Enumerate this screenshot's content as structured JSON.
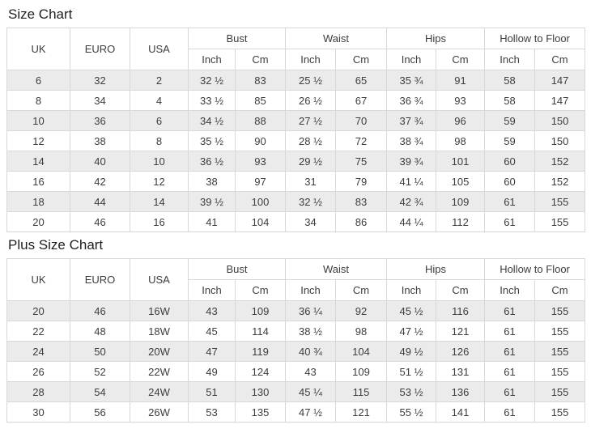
{
  "page": {
    "background": "#ffffff"
  },
  "colors": {
    "stripe_row_bg": "#ebebeb",
    "table_border": "#d8d8d8",
    "body_text": "#3d3d3d",
    "title_text": "#1f1f1f"
  },
  "tables": [
    {
      "title": "Size Chart",
      "fixed_columns": [
        "UK",
        "EURO",
        "USA"
      ],
      "groups": [
        {
          "label": "Bust",
          "sub": [
            "Inch",
            "Cm"
          ]
        },
        {
          "label": "Waist",
          "sub": [
            "Inch",
            "Cm"
          ]
        },
        {
          "label": "Hips",
          "sub": [
            "Inch",
            "Cm"
          ]
        },
        {
          "label": "Hollow to Floor",
          "sub": [
            "Inch",
            "Cm"
          ]
        }
      ],
      "rows": [
        [
          "6",
          "32",
          "2",
          "32 ½",
          "83",
          "25 ½",
          "65",
          "35 ¾",
          "91",
          "58",
          "147"
        ],
        [
          "8",
          "34",
          "4",
          "33 ½",
          "85",
          "26 ½",
          "67",
          "36 ¾",
          "93",
          "58",
          "147"
        ],
        [
          "10",
          "36",
          "6",
          "34 ½",
          "88",
          "27 ½",
          "70",
          "37 ¾",
          "96",
          "59",
          "150"
        ],
        [
          "12",
          "38",
          "8",
          "35 ½",
          "90",
          "28 ½",
          "72",
          "38 ¾",
          "98",
          "59",
          "150"
        ],
        [
          "14",
          "40",
          "10",
          "36 ½",
          "93",
          "29 ½",
          "75",
          "39 ¾",
          "101",
          "60",
          "152"
        ],
        [
          "16",
          "42",
          "12",
          "38",
          "97",
          "31",
          "79",
          "41 ¼",
          "105",
          "60",
          "152"
        ],
        [
          "18",
          "44",
          "14",
          "39 ½",
          "100",
          "32 ½",
          "83",
          "42 ¾",
          "109",
          "61",
          "155"
        ],
        [
          "20",
          "46",
          "16",
          "41",
          "104",
          "34",
          "86",
          "44 ¼",
          "112",
          "61",
          "155"
        ]
      ]
    },
    {
      "title": "Plus Size Chart",
      "fixed_columns": [
        "UK",
        "EURO",
        "USA"
      ],
      "groups": [
        {
          "label": "Bust",
          "sub": [
            "Inch",
            "Cm"
          ]
        },
        {
          "label": "Waist",
          "sub": [
            "Inch",
            "Cm"
          ]
        },
        {
          "label": "Hips",
          "sub": [
            "Inch",
            "Cm"
          ]
        },
        {
          "label": "Hollow to Floor",
          "sub": [
            "Inch",
            "Cm"
          ]
        }
      ],
      "rows": [
        [
          "20",
          "46",
          "16W",
          "43",
          "109",
          "36 ¼",
          "92",
          "45 ½",
          "116",
          "61",
          "155"
        ],
        [
          "22",
          "48",
          "18W",
          "45",
          "114",
          "38 ½",
          "98",
          "47 ½",
          "121",
          "61",
          "155"
        ],
        [
          "24",
          "50",
          "20W",
          "47",
          "119",
          "40 ¾",
          "104",
          "49 ½",
          "126",
          "61",
          "155"
        ],
        [
          "26",
          "52",
          "22W",
          "49",
          "124",
          "43",
          "109",
          "51 ½",
          "131",
          "61",
          "155"
        ],
        [
          "28",
          "54",
          "24W",
          "51",
          "130",
          "45 ¼",
          "115",
          "53 ½",
          "136",
          "61",
          "155"
        ],
        [
          "30",
          "56",
          "26W",
          "53",
          "135",
          "47 ½",
          "121",
          "55 ½",
          "141",
          "61",
          "155"
        ]
      ]
    }
  ]
}
